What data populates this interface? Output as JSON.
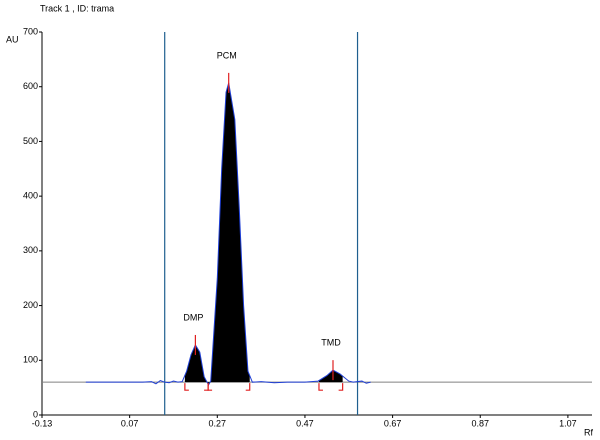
{
  "chart_data": {
    "type": "densitogram",
    "title": "Track  1  , ID: trama",
    "y_label": "AU",
    "x_label": "Rf",
    "xlim": [
      -0.13,
      1.125
    ],
    "ylim": [
      0,
      700
    ],
    "xticks": [
      -0.13,
      0.07,
      0.27,
      0.47,
      0.67,
      0.87,
      1.07
    ],
    "yticks": [
      0,
      100,
      200,
      300,
      400,
      500,
      600,
      700
    ],
    "baseline": 60,
    "vlines": [
      0.15,
      0.59
    ],
    "series": [
      {
        "color": "#1f3fd6",
        "x": [
          -0.03,
          0.1,
          0.12,
          0.13,
          0.14,
          0.15,
          0.16,
          0.17,
          0.18,
          0.19,
          0.2,
          0.21,
          0.22,
          0.23,
          0.24,
          0.25,
          0.255,
          0.27,
          0.28,
          0.29,
          0.296,
          0.31,
          0.32,
          0.33,
          0.34,
          0.35,
          0.37,
          0.4,
          0.43,
          0.47,
          0.5,
          0.52,
          0.534,
          0.55,
          0.57,
          0.58,
          0.6,
          0.61,
          0.62
        ],
        "values": [
          60,
          60,
          61,
          57,
          63,
          60,
          59,
          62,
          60,
          61,
          80,
          110,
          128,
          115,
          70,
          55,
          62,
          250,
          450,
          590,
          607,
          540,
          380,
          200,
          80,
          60,
          61,
          59,
          60,
          60,
          62,
          72,
          82,
          75,
          62,
          60,
          62,
          58,
          60
        ]
      }
    ],
    "peaks": [
      {
        "label": "DMP",
        "rf": 0.22,
        "height": 128,
        "start": 0.196,
        "end": 0.249
      },
      {
        "label": "PCM",
        "rf": 0.296,
        "height": 607,
        "start": 0.249,
        "end": 0.344
      },
      {
        "label": "TMD",
        "rf": 0.534,
        "height": 82,
        "start": 0.502,
        "end": 0.556
      }
    ]
  }
}
